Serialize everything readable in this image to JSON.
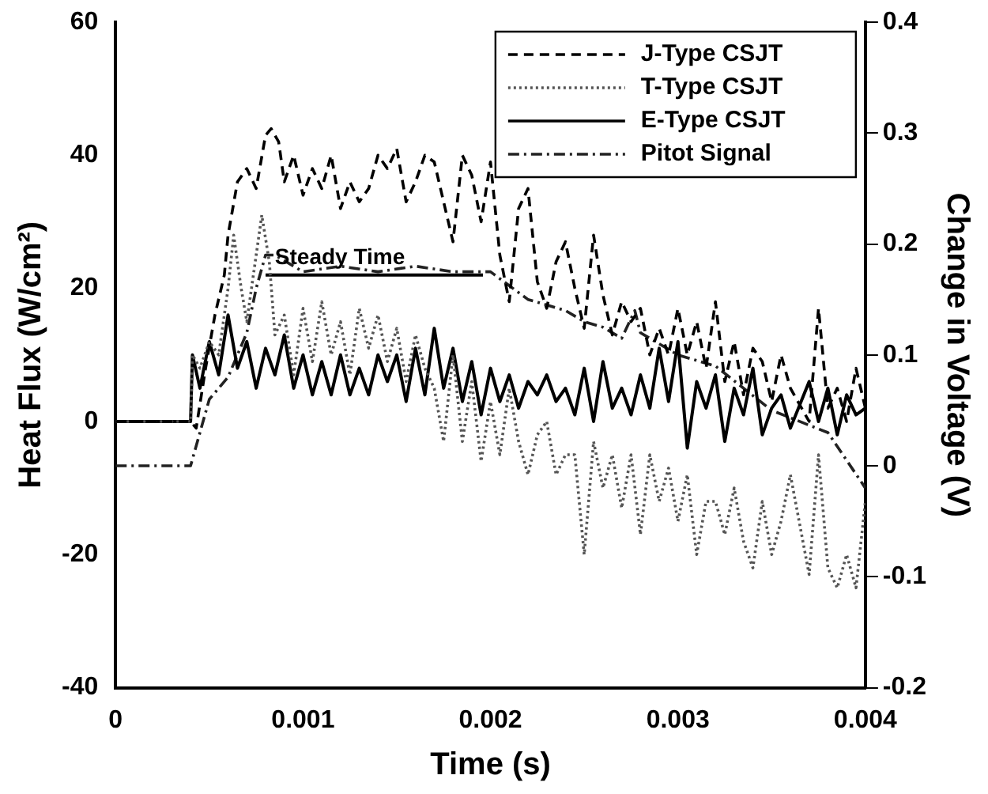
{
  "chart_data": {
    "type": "line",
    "xlabel": "Time (s)",
    "ylabel": "Heat Flux (W/cm²)",
    "y2label": "Change in Voltage (V)",
    "xlim": [
      0,
      0.004
    ],
    "xticks": [
      0,
      0.001,
      0.002,
      0.003,
      0.004
    ],
    "ylim": [
      -40,
      60
    ],
    "yticks": [
      -40,
      -20,
      0,
      20,
      40,
      60
    ],
    "y2lim": [
      -0.2,
      0.4
    ],
    "y2ticks": [
      -0.2,
      -0.1,
      0,
      0.1,
      0.2,
      0.3,
      0.4
    ],
    "legend": "top right",
    "marker": "none",
    "annotations": [
      {
        "text": "Steady Time",
        "x": 0.00085,
        "y": 22
      }
    ],
    "series": [
      {
        "name": "J-Type CSJT",
        "color": "#000000",
        "line_style": "dashed",
        "x": [
          0,
          0.0004,
          0.00043,
          0.00048,
          0.00053,
          0.00058,
          0.0006,
          0.00065,
          0.0007,
          0.00075,
          0.0008,
          0.00083,
          0.00087,
          0.0009,
          0.00095,
          0.001,
          0.00105,
          0.0011,
          0.00115,
          0.0012,
          0.00125,
          0.0013,
          0.00135,
          0.0014,
          0.00145,
          0.0015,
          0.00155,
          0.0016,
          0.00165,
          0.0017,
          0.00175,
          0.0018,
          0.00185,
          0.0019,
          0.00195,
          0.002,
          0.00205,
          0.0021,
          0.00215,
          0.0022,
          0.00225,
          0.0023,
          0.00235,
          0.0024,
          0.00245,
          0.0025,
          0.00255,
          0.0026,
          0.00265,
          0.0027,
          0.00275,
          0.0028,
          0.00285,
          0.0029,
          0.00295,
          0.003,
          0.00305,
          0.0031,
          0.00315,
          0.0032,
          0.00325,
          0.0033,
          0.00335,
          0.0034,
          0.00345,
          0.0035,
          0.00355,
          0.0036,
          0.0037,
          0.00375,
          0.0038,
          0.00385,
          0.0039,
          0.00395,
          0.004
        ],
        "values": [
          0,
          0,
          -1,
          8,
          16,
          22,
          28,
          36,
          38,
          35,
          43,
          44,
          42,
          36,
          40,
          34,
          38,
          35,
          40,
          32,
          36,
          33,
          35,
          40,
          38,
          41,
          33,
          36,
          40,
          39,
          33,
          27,
          40,
          37,
          30,
          39,
          25,
          18,
          32,
          35,
          21,
          17,
          24,
          27,
          20,
          14,
          28,
          19,
          13,
          18,
          15,
          17,
          10,
          14,
          10,
          17,
          10,
          15,
          8,
          18,
          6,
          12,
          4,
          11,
          9,
          3,
          10,
          5,
          0,
          17,
          2,
          5,
          0,
          8,
          2
        ]
      },
      {
        "name": "T-Type CSJT",
        "color": "#555555",
        "line_style": "dotted",
        "x": [
          0,
          0.0004,
          0.00041,
          0.00045,
          0.0005,
          0.00055,
          0.0006,
          0.00063,
          0.00067,
          0.0007,
          0.00075,
          0.00078,
          0.00082,
          0.00085,
          0.0009,
          0.00095,
          0.001,
          0.00105,
          0.0011,
          0.00115,
          0.0012,
          0.00125,
          0.0013,
          0.00135,
          0.0014,
          0.00145,
          0.0015,
          0.00155,
          0.0016,
          0.00165,
          0.0017,
          0.00175,
          0.0018,
          0.00185,
          0.0019,
          0.00195,
          0.002,
          0.00205,
          0.0021,
          0.00215,
          0.0022,
          0.00225,
          0.0023,
          0.00235,
          0.0024,
          0.00245,
          0.0025,
          0.00255,
          0.0026,
          0.00265,
          0.0027,
          0.00275,
          0.0028,
          0.00285,
          0.0029,
          0.00295,
          0.003,
          0.00305,
          0.0031,
          0.00315,
          0.0032,
          0.00325,
          0.0033,
          0.00335,
          0.0034,
          0.00345,
          0.0035,
          0.00355,
          0.0036,
          0.0037,
          0.00375,
          0.0038,
          0.00385,
          0.0039,
          0.00395,
          0.004
        ],
        "values": [
          0,
          0,
          10,
          8,
          12,
          10,
          20,
          28,
          20,
          15,
          25,
          31,
          24,
          13,
          16,
          7,
          17,
          9,
          18,
          10,
          15,
          7,
          17,
          11,
          16,
          9,
          14,
          6,
          13,
          8,
          5,
          -3,
          10,
          -3,
          6,
          -6,
          3,
          -5,
          5,
          -3,
          -8,
          -2,
          0,
          -8,
          -5,
          -5,
          -20,
          -3,
          -10,
          -5,
          -13,
          -5,
          -17,
          -5,
          -12,
          -7,
          -15,
          -8,
          -20,
          -12,
          -12,
          -17,
          -10,
          -18,
          -22,
          -12,
          -20,
          -15,
          -8,
          -23,
          -5,
          -22,
          -25,
          -20,
          -25,
          -12
        ]
      },
      {
        "name": "E-Type CSJT",
        "color": "#000000",
        "line_style": "solid",
        "x": [
          0,
          0.0004,
          0.00041,
          0.00045,
          0.0005,
          0.00055,
          0.0006,
          0.00065,
          0.0007,
          0.00075,
          0.0008,
          0.00085,
          0.0009,
          0.00095,
          0.001,
          0.00105,
          0.0011,
          0.00115,
          0.0012,
          0.00125,
          0.0013,
          0.00135,
          0.0014,
          0.00145,
          0.0015,
          0.00155,
          0.0016,
          0.00165,
          0.0017,
          0.00175,
          0.0018,
          0.00185,
          0.0019,
          0.00195,
          0.002,
          0.00205,
          0.0021,
          0.00215,
          0.0022,
          0.00225,
          0.0023,
          0.00235,
          0.0024,
          0.00245,
          0.0025,
          0.00255,
          0.0026,
          0.00265,
          0.0027,
          0.00275,
          0.0028,
          0.00285,
          0.0029,
          0.00295,
          0.003,
          0.00305,
          0.0031,
          0.00315,
          0.0032,
          0.00325,
          0.0033,
          0.00335,
          0.0034,
          0.00345,
          0.0035,
          0.00355,
          0.0036,
          0.0037,
          0.00375,
          0.0038,
          0.00385,
          0.0039,
          0.00395,
          0.004
        ],
        "values": [
          0,
          0,
          10,
          5,
          12,
          7,
          16,
          8,
          12,
          5,
          11,
          7,
          13,
          5,
          10,
          4,
          9,
          4,
          10,
          4,
          8,
          4,
          10,
          6,
          10,
          3,
          11,
          4,
          14,
          5,
          11,
          3,
          9,
          1,
          8,
          3,
          7,
          2,
          6,
          4,
          7,
          3,
          5,
          1,
          8,
          0,
          9,
          2,
          5,
          1,
          7,
          2,
          11,
          3,
          12,
          -4,
          6,
          2,
          7,
          -3,
          5,
          1,
          8,
          -2,
          2,
          4,
          -1,
          6,
          0,
          5,
          -2,
          4,
          1,
          2
        ]
      },
      {
        "name": "Pitot Signal",
        "color": "#222222",
        "line_style": "dashdot",
        "axis": "y2",
        "x": [
          0,
          0.0004,
          0.00045,
          0.0005,
          0.0006,
          0.0007,
          0.00075,
          0.0008,
          0.00085,
          0.001,
          0.0012,
          0.0014,
          0.0016,
          0.0018,
          0.002,
          0.0022,
          0.0024,
          0.0025,
          0.0026,
          0.0027,
          0.00277,
          0.0028,
          0.003,
          0.0032,
          0.0035,
          0.0038,
          0.004
        ],
        "values": [
          0,
          0,
          0.03,
          0.06,
          0.08,
          0.12,
          0.16,
          0.19,
          0.19,
          0.175,
          0.18,
          0.175,
          0.18,
          0.175,
          0.175,
          0.15,
          0.14,
          0.13,
          0.125,
          0.115,
          0.14,
          0.12,
          0.1,
          0.09,
          0.05,
          0.03,
          -0.02
        ]
      },
      {
        "color": "#000000",
        "line_style": "solid",
        "x": [
          0.0008,
          0.00196
        ],
        "values": [
          22,
          22
        ]
      }
    ]
  }
}
